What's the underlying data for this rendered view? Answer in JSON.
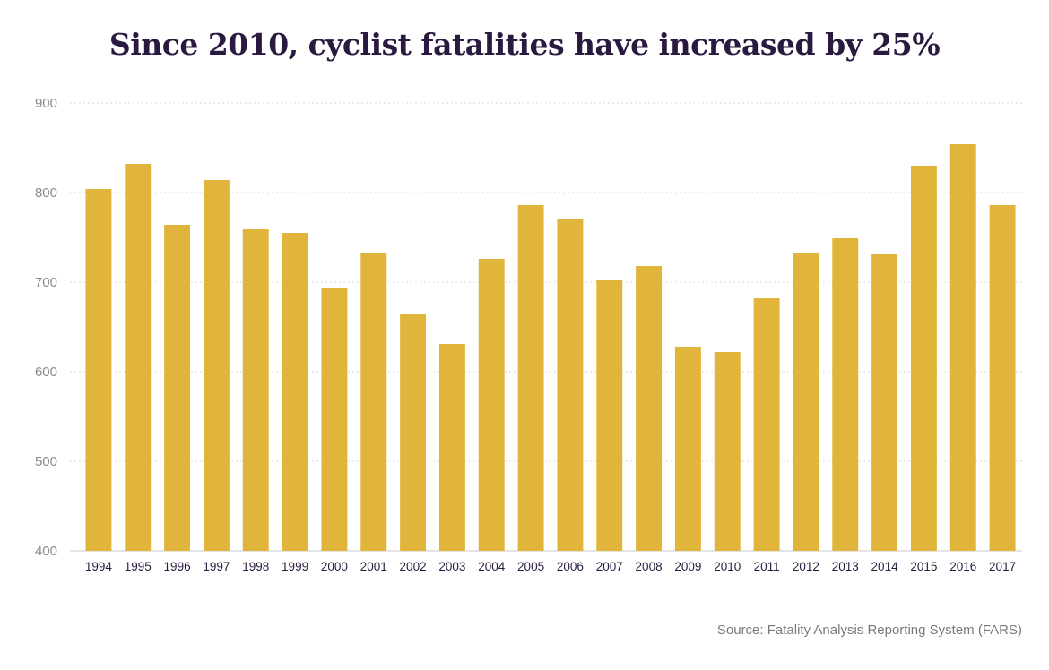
{
  "chart_data": {
    "type": "bar",
    "title": "Since 2010, cyclist fatalities have increased by 25%",
    "xlabel": "",
    "ylabel": "",
    "categories": [
      "1994",
      "1995",
      "1996",
      "1997",
      "1998",
      "1999",
      "2000",
      "2001",
      "2002",
      "2003",
      "2004",
      "2005",
      "2006",
      "2007",
      "2008",
      "2009",
      "2010",
      "2011",
      "2012",
      "2013",
      "2014",
      "2015",
      "2016",
      "2017"
    ],
    "values": [
      804,
      832,
      764,
      814,
      759,
      755,
      693,
      732,
      665,
      631,
      726,
      786,
      771,
      702,
      718,
      628,
      622,
      682,
      733,
      749,
      731,
      830,
      854,
      786
    ],
    "ylim": [
      400,
      900
    ],
    "yticks": [
      400,
      500,
      600,
      700,
      800,
      900
    ],
    "grid": true,
    "bar_color": "#e1b53c",
    "grid_color": "#e6e6e6",
    "source": "Source: Fatality Analysis Reporting System (FARS)"
  }
}
